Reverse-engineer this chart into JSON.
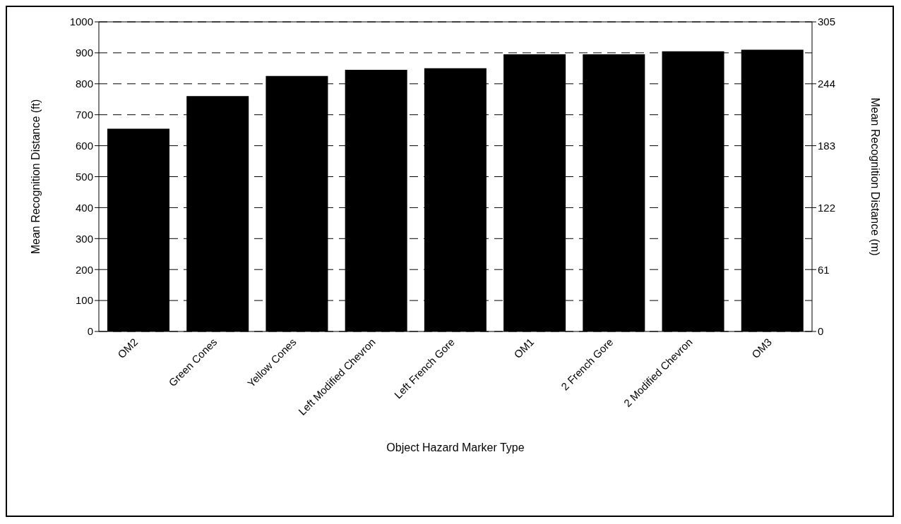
{
  "chart_data": {
    "type": "bar",
    "xlabel": "Object Hazard Marker Type",
    "ylabel": "Mean Recognition Distance (ft)",
    "y2label": "Mean Recognition Distance (m)",
    "categories": [
      "OM2",
      "Green Cones",
      "Yellow Cones",
      "Left Modified Chevron",
      "Left French Gore",
      "OM1",
      "2 French Gore",
      "2 Modified Chevron",
      "OM3"
    ],
    "values": [
      655,
      760,
      825,
      845,
      850,
      895,
      895,
      905,
      910
    ],
    "color": "#000000",
    "ylim": [
      0,
      1000
    ],
    "yticks": [
      0,
      100,
      200,
      300,
      400,
      500,
      600,
      700,
      800,
      900,
      1000
    ],
    "y2lim": [
      0,
      305
    ],
    "y2ticks": [
      0,
      61,
      122,
      183,
      244,
      305
    ],
    "grid": "y"
  }
}
